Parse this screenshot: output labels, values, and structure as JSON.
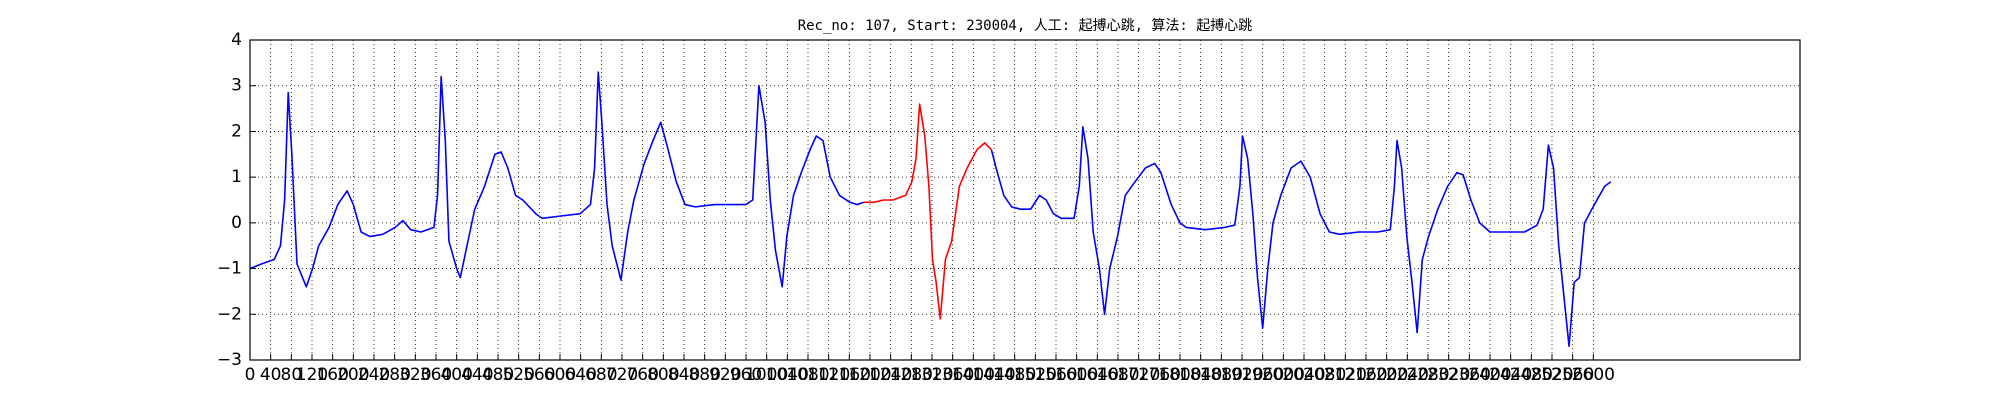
{
  "chart_data": {
    "type": "line",
    "title": "Rec_no: 107, Start: 230004, 人工: 起搏心跳, 算法: 起搏心跳",
    "x": [
      0,
      22,
      47,
      59,
      67,
      74,
      81,
      91,
      109,
      121,
      133,
      153,
      170,
      188,
      200,
      215,
      232,
      257,
      281,
      296,
      311,
      331,
      356,
      363,
      370,
      378,
      385,
      400,
      407,
      420,
      435,
      454,
      474,
      486,
      499,
      514,
      528,
      553,
      565,
      602,
      639,
      659,
      667,
      674,
      681,
      691,
      701,
      718,
      731,
      743,
      763,
      780,
      795,
      807,
      825,
      842,
      862,
      899,
      936,
      960,
      973,
      985,
      997,
      1007,
      1017,
      1030,
      1039,
      1052,
      1067,
      1084,
      1096,
      1109,
      1123,
      1141,
      1161,
      1175,
      1188,
      1207,
      1227,
      1244,
      1269,
      1281,
      1289,
      1296,
      1306,
      1314,
      1321,
      1328,
      1336,
      1346,
      1358,
      1373,
      1388,
      1407,
      1422,
      1435,
      1444,
      1459,
      1474,
      1491,
      1511,
      1528,
      1541,
      1555,
      1570,
      1595,
      1605,
      1612,
      1622,
      1632,
      1644,
      1654,
      1664,
      1679,
      1694,
      1713,
      1733,
      1751,
      1763,
      1783,
      1800,
      1812,
      1849,
      1886,
      1906,
      1916,
      1921,
      1931,
      1941,
      1950,
      1960,
      1970,
      1980,
      1995,
      2015,
      2034,
      2052,
      2071,
      2089,
      2109,
      2146,
      2183,
      2207,
      2215,
      2220,
      2229,
      2239,
      2249,
      2259,
      2269,
      2281,
      2299,
      2318,
      2336,
      2348,
      2363,
      2380,
      2400,
      2429,
      2467,
      2491,
      2503,
      2513,
      2523,
      2533,
      2543,
      2553,
      2563,
      2573,
      2583,
      2602,
      2622,
      2634
    ],
    "series": [
      {
        "color": "#0000ff",
        "values": [
          -1.0,
          -0.9,
          -0.8,
          -0.5,
          0.5,
          2.85,
          1.5,
          -0.9,
          -1.4,
          -1.0,
          -0.5,
          -0.1,
          0.4,
          0.7,
          0.4,
          -0.2,
          -0.3,
          -0.25,
          -0.1,
          0.05,
          -0.15,
          -0.2,
          -0.1,
          0.6,
          3.2,
          1.8,
          -0.4,
          -1.0,
          -1.2,
          -0.5,
          0.3,
          0.8,
          1.5,
          1.55,
          1.2,
          0.6,
          0.5,
          0.2,
          0.1,
          0.15,
          0.2,
          0.4,
          1.2,
          3.3,
          2.2,
          0.4,
          -0.5,
          -1.25,
          -0.2,
          0.5,
          1.3,
          1.8,
          2.2,
          1.7,
          0.9,
          0.4,
          0.35,
          0.4,
          0.4,
          0.4,
          0.5,
          3.0,
          2.2,
          0.5,
          -0.6,
          -1.4,
          -0.3,
          0.6,
          1.1,
          1.6,
          1.9,
          1.8,
          1.0,
          0.6,
          0.45,
          0.4,
          0.45,
          null,
          null,
          null,
          null,
          null,
          null,
          null,
          null,
          null,
          null,
          null,
          null,
          null,
          null,
          null,
          null,
          null,
          null,
          1.6,
          1.2,
          0.6,
          0.35,
          0.3,
          0.3,
          0.6,
          0.5,
          0.2,
          0.1,
          0.1,
          0.8,
          2.1,
          1.4,
          -0.2,
          -1.0,
          -2.0,
          -1.0,
          -0.3,
          0.6,
          0.9,
          1.2,
          1.3,
          1.1,
          0.4,
          0.0,
          -0.1,
          -0.15,
          -0.1,
          -0.05,
          0.8,
          1.9,
          1.4,
          0.2,
          -1.2,
          -2.3,
          -1.0,
          0.0,
          0.6,
          1.2,
          1.35,
          1.0,
          0.2,
          -0.2,
          -0.25,
          -0.2,
          -0.2,
          -0.15,
          0.8,
          1.8,
          1.2,
          -0.3,
          -1.3,
          -2.4,
          -0.8,
          -0.3,
          0.3,
          0.8,
          1.1,
          1.05,
          0.5,
          0.0,
          -0.2,
          -0.2,
          -0.2,
          -0.05,
          0.3,
          1.7,
          1.2,
          -0.5,
          -1.6,
          -2.7,
          -1.3,
          -1.2,
          0.0,
          0.4,
          0.8,
          0.9
        ]
      },
      {
        "color": "#ff0000",
        "values": [
          null,
          null,
          null,
          null,
          null,
          null,
          null,
          null,
          null,
          null,
          null,
          null,
          null,
          null,
          null,
          null,
          null,
          null,
          null,
          null,
          null,
          null,
          null,
          null,
          null,
          null,
          null,
          null,
          null,
          null,
          null,
          null,
          null,
          null,
          null,
          null,
          null,
          null,
          null,
          null,
          null,
          null,
          null,
          null,
          null,
          null,
          null,
          null,
          null,
          null,
          null,
          null,
          null,
          null,
          null,
          null,
          null,
          null,
          null,
          null,
          null,
          null,
          null,
          null,
          null,
          null,
          null,
          null,
          null,
          null,
          null,
          null,
          null,
          null,
          null,
          null,
          0.45,
          0.45,
          0.5,
          0.5,
          0.6,
          0.9,
          1.4,
          2.6,
          1.9,
          0.8,
          -0.8,
          -1.3,
          -2.1,
          -0.8,
          -0.4,
          0.8,
          1.2,
          1.6,
          1.75,
          1.6,
          null,
          null,
          null,
          null,
          null,
          null,
          null,
          null,
          null,
          null,
          null,
          null,
          null,
          null,
          null,
          null,
          null,
          null,
          null,
          null,
          null,
          null,
          null,
          null,
          null,
          null,
          null,
          null,
          null,
          null,
          null,
          null,
          null,
          null,
          null,
          null,
          null,
          null,
          null,
          null,
          null,
          null,
          null,
          null,
          null,
          null,
          null,
          null,
          null,
          null,
          null,
          null,
          null,
          null,
          null,
          null,
          null,
          null,
          null,
          null,
          null,
          null,
          null,
          null,
          null,
          null,
          null,
          null,
          null,
          null,
          null,
          null,
          null,
          null,
          null,
          null,
          null
        ]
      }
    ],
    "xlim": [
      0,
      3000
    ],
    "xticks": [
      0,
      40,
      80,
      120,
      160,
      200,
      240,
      280,
      320,
      360,
      400,
      440,
      480,
      520,
      560,
      600,
      640,
      680,
      720,
      760,
      800,
      840,
      880,
      920,
      960,
      1000,
      1040,
      1080,
      1120,
      1160,
      1200,
      1240,
      1280,
      1320,
      1360,
      1400,
      1440,
      1480,
      1520,
      1560,
      1600,
      1640,
      1680,
      1720,
      1760,
      1800,
      1840,
      1880,
      1920,
      1960,
      2000,
      2040,
      2080,
      2120,
      2160,
      2200,
      2240,
      2280,
      2320,
      2360,
      2400,
      2440,
      2480,
      2520,
      2560,
      2600
    ],
    "ylim": [
      -3,
      4
    ],
    "yticks": [
      {
        "value": -3,
        "label": "−3"
      },
      {
        "value": -2,
        "label": "−2"
      },
      {
        "value": -1,
        "label": "−1"
      },
      0,
      1,
      2,
      3,
      4
    ],
    "grid": true
  }
}
